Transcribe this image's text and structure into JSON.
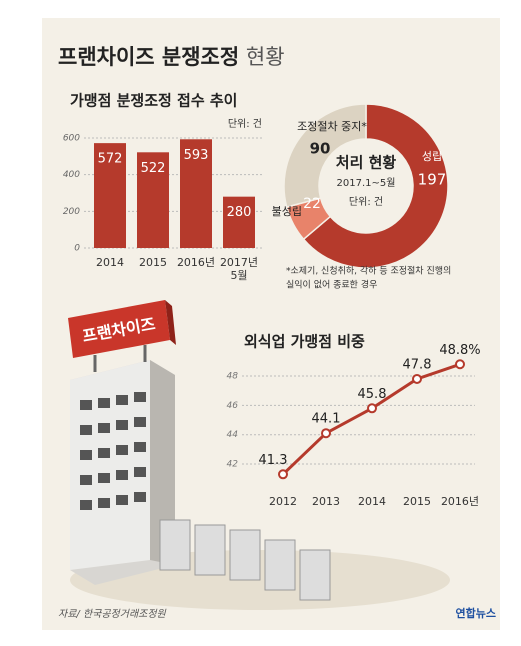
{
  "title_main": "프랜차이즈 분쟁조정",
  "title_suffix": "현황",
  "sign": "프랜차이즈",
  "source": "자료/ 한국공정거래조정원",
  "logo": "연합뉴스",
  "chart_data": [
    {
      "type": "bar",
      "title": "가맹점 분쟁조정 접수 추이",
      "unit": "단위: 건",
      "categories": [
        "2014",
        "2015",
        "2016년",
        "2017년 5월"
      ],
      "values": [
        572,
        522,
        593,
        280
      ],
      "color": "#b53a2c",
      "ylim": [
        0,
        650
      ],
      "yticks": [
        0,
        200,
        400,
        600
      ],
      "grid": true
    },
    {
      "type": "donut",
      "title": "처리 현황",
      "subtitle": "2017.1~5월",
      "unit": "단위: 건",
      "categories": [
        "성립",
        "불성립",
        "조정절차 중지*"
      ],
      "values": [
        197,
        22,
        90
      ],
      "colors": [
        "#b53a2c",
        "#e8836a",
        "#dcd3c2"
      ],
      "footnote": [
        "*소제기, 신청취하, 각하 등 조정절차 진행의",
        "실익이 없어 종료한 경우"
      ]
    },
    {
      "type": "line",
      "title": "외식업 가맹점 비중",
      "categories": [
        "2012",
        "2013",
        "2014",
        "2015",
        "2016년"
      ],
      "values": [
        41.3,
        44.1,
        45.8,
        47.8,
        48.8
      ],
      "value_labels": [
        "41.3",
        "44.1",
        "45.8",
        "47.8",
        "48.8%"
      ],
      "color": "#b53a2c",
      "ylim": [
        41,
        49.5
      ],
      "yticks": [
        42,
        44,
        46,
        48
      ],
      "grid": true
    }
  ]
}
